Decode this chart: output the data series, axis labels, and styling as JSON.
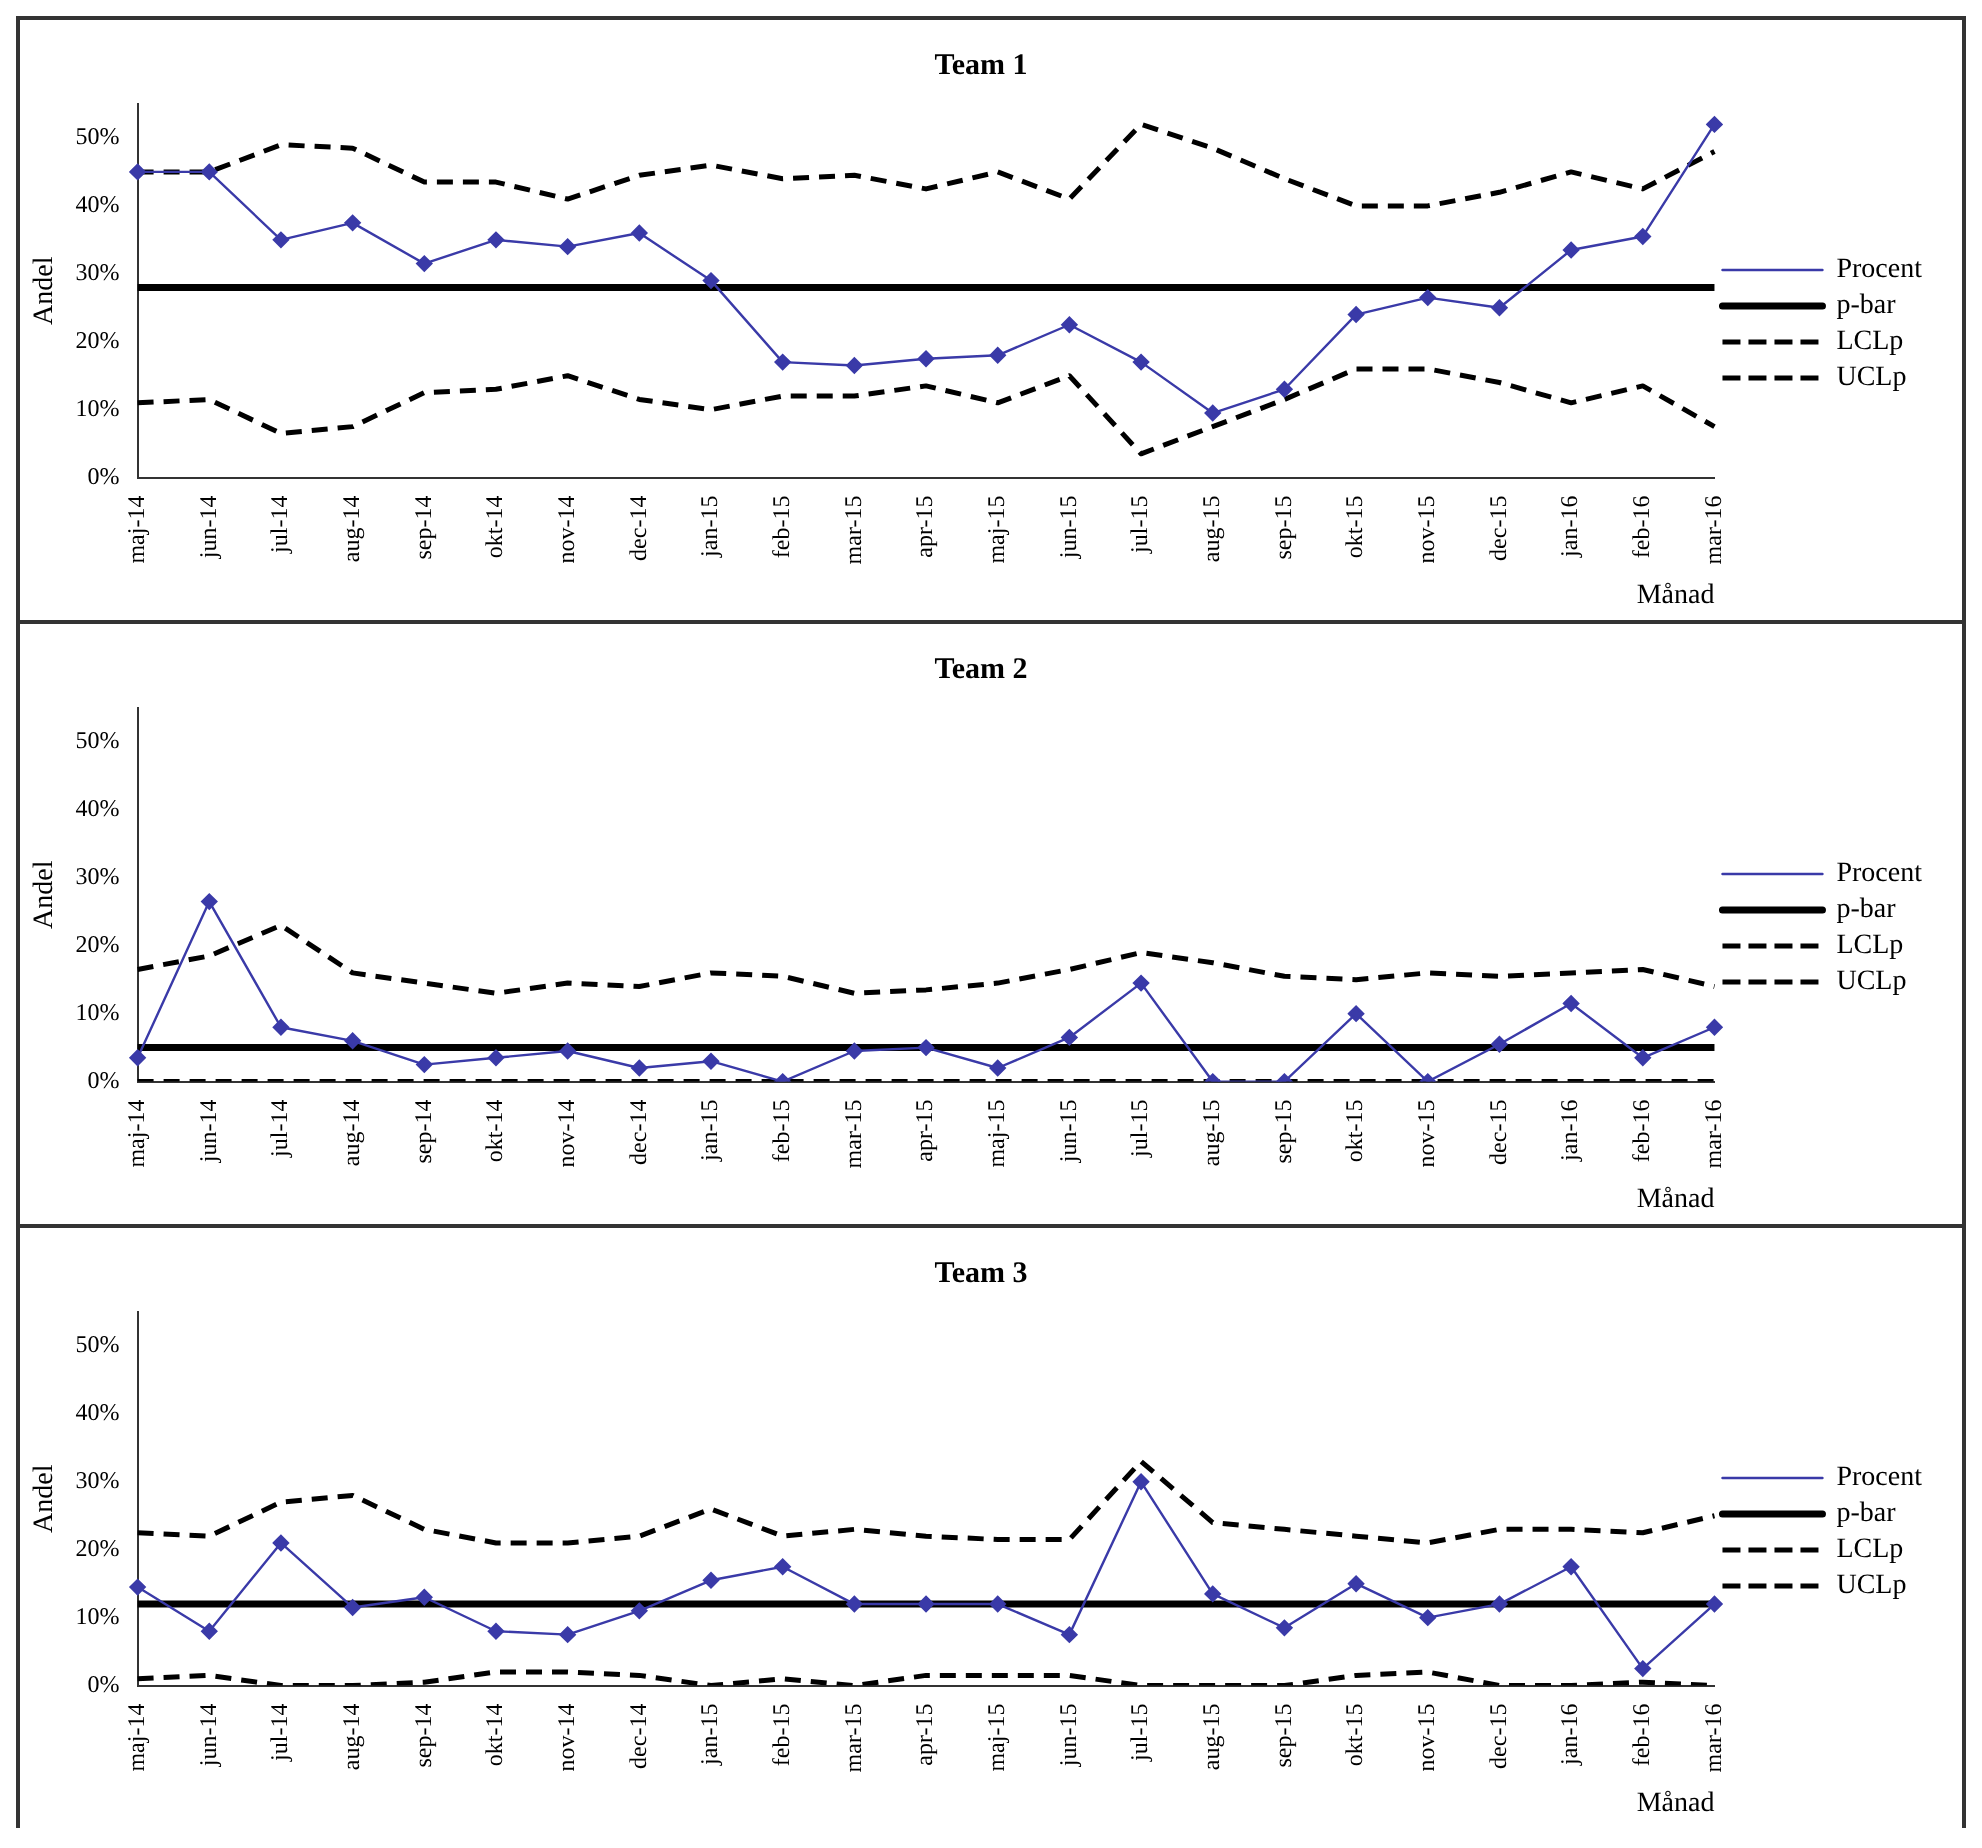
{
  "chart_data": [
    {
      "type": "line",
      "title": "Team 1",
      "xlabel": "Månad",
      "ylabel": "Andel",
      "legend": "right",
      "grid": false,
      "ylim": [
        0,
        55
      ],
      "yticks": [
        {
          "value": 0,
          "label": "0%"
        },
        {
          "value": 10,
          "label": "10%"
        },
        {
          "value": 20,
          "label": "20%"
        },
        {
          "value": 30,
          "label": "30%"
        },
        {
          "value": 40,
          "label": "40%"
        },
        {
          "value": 50,
          "label": "50%"
        }
      ],
      "categories": [
        "maj-14",
        "jun-14",
        "jul-14",
        "aug-14",
        "sep-14",
        "okt-14",
        "nov-14",
        "dec-14",
        "jan-15",
        "feb-15",
        "mar-15",
        "apr-15",
        "maj-15",
        "jun-15",
        "jul-15",
        "aug-15",
        "sep-15",
        "okt-15",
        "nov-15",
        "dec-15",
        "jan-16",
        "feb-16",
        "mar-16"
      ],
      "series": [
        {
          "name": "Procent",
          "color": "#3a3aa8",
          "marker": "diamond",
          "line_style": "solid",
          "values": [
            45,
            45,
            35,
            37.5,
            31.5,
            35,
            34,
            36,
            29,
            17,
            16.5,
            17.5,
            18,
            22.5,
            17,
            9.5,
            13,
            24,
            26.5,
            25,
            33.5,
            35.5,
            52
          ]
        },
        {
          "name": "p-bar",
          "color": "#000000",
          "marker": "none",
          "line_style": "solid",
          "values": [
            28,
            28,
            28,
            28,
            28,
            28,
            28,
            28,
            28,
            28,
            28,
            28,
            28,
            28,
            28,
            28,
            28,
            28,
            28,
            28,
            28,
            28,
            28
          ]
        },
        {
          "name": "LCLp",
          "color": "#000000",
          "marker": "none",
          "line_style": "dashed",
          "values": [
            11,
            11.5,
            6.5,
            7.5,
            12.5,
            13,
            15,
            11.5,
            10,
            12,
            12,
            13.5,
            11,
            15,
            3.5,
            7.5,
            11.5,
            16,
            16,
            14,
            11,
            13.5,
            7.5
          ]
        },
        {
          "name": "UCLp",
          "color": "#000000",
          "marker": "none",
          "line_style": "dashed",
          "values": [
            45,
            45,
            49,
            48.5,
            43.5,
            43.5,
            41,
            44.5,
            46,
            44,
            44.5,
            42.5,
            45,
            41,
            52,
            48.5,
            44,
            40,
            40,
            42,
            45,
            42.5,
            48
          ]
        }
      ]
    },
    {
      "type": "line",
      "title": "Team 2",
      "xlabel": "Månad",
      "ylabel": "Andel",
      "legend": "right",
      "grid": false,
      "ylim": [
        0,
        55
      ],
      "yticks": [
        {
          "value": 0,
          "label": "0%"
        },
        {
          "value": 10,
          "label": "10%"
        },
        {
          "value": 20,
          "label": "20%"
        },
        {
          "value": 30,
          "label": "30%"
        },
        {
          "value": 40,
          "label": "40%"
        },
        {
          "value": 50,
          "label": "50%"
        }
      ],
      "categories": [
        "maj-14",
        "jun-14",
        "jul-14",
        "aug-14",
        "sep-14",
        "okt-14",
        "nov-14",
        "dec-14",
        "jan-15",
        "feb-15",
        "mar-15",
        "apr-15",
        "maj-15",
        "jun-15",
        "jul-15",
        "aug-15",
        "sep-15",
        "okt-15",
        "nov-15",
        "dec-15",
        "jan-16",
        "feb-16",
        "mar-16"
      ],
      "series": [
        {
          "name": "Procent",
          "color": "#3a3aa8",
          "marker": "diamond",
          "line_style": "solid",
          "values": [
            3.5,
            26.5,
            8,
            6,
            2.5,
            3.5,
            4.5,
            2,
            3,
            0,
            4.5,
            5,
            2,
            6.5,
            14.5,
            0,
            0,
            10,
            0,
            5.5,
            11.5,
            3.5,
            8
          ]
        },
        {
          "name": "p-bar",
          "color": "#000000",
          "marker": "none",
          "line_style": "solid",
          "values": [
            5,
            5,
            5,
            5,
            5,
            5,
            5,
            5,
            5,
            5,
            5,
            5,
            5,
            5,
            5,
            5,
            5,
            5,
            5,
            5,
            5,
            5,
            5
          ]
        },
        {
          "name": "LCLp",
          "color": "#000000",
          "marker": "none",
          "line_style": "dashed",
          "values": [
            0,
            0,
            0,
            0,
            0,
            0,
            0,
            0,
            0,
            0,
            0,
            0,
            0,
            0,
            0,
            0,
            0,
            0,
            0,
            0,
            0,
            0,
            0
          ]
        },
        {
          "name": "UCLp",
          "color": "#000000",
          "marker": "none",
          "line_style": "dashed",
          "values": [
            16.5,
            18.5,
            23,
            16,
            14.5,
            13,
            14.5,
            14,
            16,
            15.5,
            13,
            13.5,
            14.5,
            16.5,
            19,
            17.5,
            15.5,
            15,
            16,
            15.5,
            16,
            16.5,
            14
          ]
        }
      ]
    },
    {
      "type": "line",
      "title": "Team 3",
      "xlabel": "Månad",
      "ylabel": "Andel",
      "legend": "right",
      "grid": false,
      "ylim": [
        0,
        55
      ],
      "yticks": [
        {
          "value": 0,
          "label": "0%"
        },
        {
          "value": 10,
          "label": "10%"
        },
        {
          "value": 20,
          "label": "20%"
        },
        {
          "value": 30,
          "label": "30%"
        },
        {
          "value": 40,
          "label": "40%"
        },
        {
          "value": 50,
          "label": "50%"
        }
      ],
      "categories": [
        "maj-14",
        "jun-14",
        "jul-14",
        "aug-14",
        "sep-14",
        "okt-14",
        "nov-14",
        "dec-14",
        "jan-15",
        "feb-15",
        "mar-15",
        "apr-15",
        "maj-15",
        "jun-15",
        "jul-15",
        "aug-15",
        "sep-15",
        "okt-15",
        "nov-15",
        "dec-15",
        "jan-16",
        "feb-16",
        "mar-16"
      ],
      "series": [
        {
          "name": "Procent",
          "color": "#3a3aa8",
          "marker": "diamond",
          "line_style": "solid",
          "values": [
            14.5,
            8,
            21,
            11.5,
            13,
            8,
            7.5,
            11,
            15.5,
            17.5,
            12,
            12,
            12,
            7.5,
            30,
            13.5,
            8.5,
            15,
            10,
            12,
            17.5,
            2.5,
            12
          ]
        },
        {
          "name": "p-bar",
          "color": "#000000",
          "marker": "none",
          "line_style": "solid",
          "values": [
            12,
            12,
            12,
            12,
            12,
            12,
            12,
            12,
            12,
            12,
            12,
            12,
            12,
            12,
            12,
            12,
            12,
            12,
            12,
            12,
            12,
            12,
            12
          ]
        },
        {
          "name": "LCLp",
          "color": "#000000",
          "marker": "none",
          "line_style": "dashed",
          "values": [
            1,
            1.5,
            0,
            0,
            0.5,
            2,
            2,
            1.5,
            0,
            1,
            0,
            1.5,
            1.5,
            1.5,
            0,
            0,
            0,
            1.5,
            2,
            0,
            0,
            0.5,
            0
          ]
        },
        {
          "name": "UCLp",
          "color": "#000000",
          "marker": "none",
          "line_style": "dashed",
          "values": [
            22.5,
            22,
            27,
            28,
            23,
            21,
            21,
            22,
            26,
            22,
            23,
            22,
            21.5,
            21.5,
            33,
            24,
            23,
            22,
            21,
            23,
            23,
            22.5,
            25
          ]
        }
      ]
    }
  ]
}
